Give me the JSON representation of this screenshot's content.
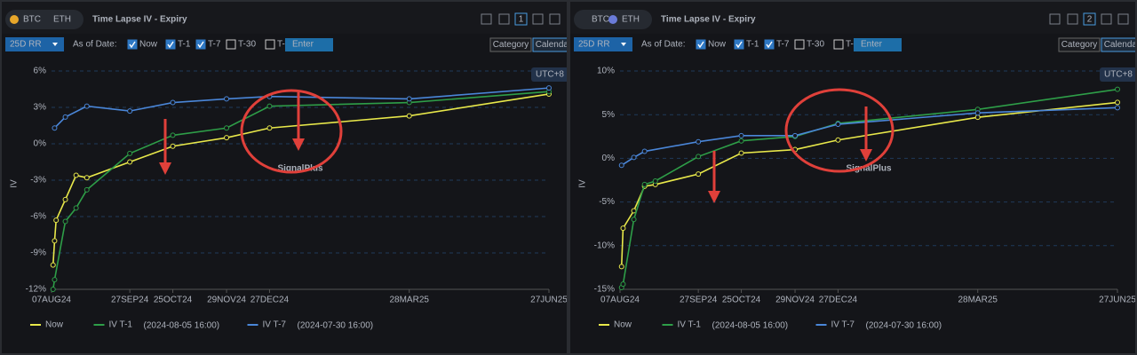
{
  "panels": [
    {
      "tabs": [
        "BTC",
        "ETH"
      ],
      "active_tab": 0,
      "title": "Time Lapse IV - Expiry",
      "window_no": "1",
      "selector": "25D RR",
      "as_of_label": "As of Date:",
      "options": [
        {
          "label": "Now",
          "checked": true
        },
        {
          "label": "T-1",
          "checked": true
        },
        {
          "label": "T-7",
          "checked": true
        },
        {
          "label": "T-30",
          "checked": false
        },
        {
          "label": "T-",
          "checked": false
        }
      ],
      "placeholder": "Enter",
      "views": [
        "Category",
        "Calendar"
      ],
      "active_view": 1,
      "timezone": "UTC+8",
      "watermark": "SignalPlus"
    },
    {
      "tabs": [
        "BTC",
        "ETH"
      ],
      "active_tab": 1,
      "title": "Time Lapse IV - Expiry",
      "window_no": "2",
      "selector": "25D RR",
      "as_of_label": "As of Date:",
      "options": [
        {
          "label": "Now",
          "checked": true
        },
        {
          "label": "T-1",
          "checked": true
        },
        {
          "label": "T-7",
          "checked": true
        },
        {
          "label": "T-30",
          "checked": false
        },
        {
          "label": "T-",
          "checked": false
        }
      ],
      "placeholder": "Enter",
      "views": [
        "Category",
        "Calendar"
      ],
      "active_view": 1,
      "timezone": "UTC+8",
      "watermark": "SignalPlus"
    }
  ],
  "chart_data": [
    {
      "type": "line",
      "y_label": "IV",
      "xlim": [
        "07AUG24",
        "27JUN25"
      ],
      "xticks": [
        "07AUG24",
        "27SEP24",
        "25OCT24",
        "29NOV24",
        "27DEC24",
        "28MAR25",
        "27JUN25"
      ],
      "ylim": [
        -12,
        6
      ],
      "yticks": [
        {
          "value": -12,
          "label": "-12%"
        },
        {
          "value": -9,
          "label": "-9%"
        },
        {
          "value": -6,
          "label": "-6%"
        },
        {
          "value": -3,
          "label": "-3%"
        },
        {
          "value": 0,
          "label": "0%"
        },
        {
          "value": 3,
          "label": "3%"
        },
        {
          "value": 6,
          "label": "6%"
        }
      ],
      "grid": true,
      "series": [
        {
          "name": "Now",
          "color": "#e8e84a",
          "x": [
            "08AUG24",
            "09AUG24",
            "10AUG24",
            "16AUG24",
            "23AUG24",
            "30AUG24",
            "27SEP24",
            "25OCT24",
            "29NOV24",
            "27DEC24",
            "28MAR25",
            "27JUN25"
          ],
          "values": [
            -10,
            -8,
            -6.3,
            -4.6,
            -2.6,
            -2.8,
            -1.5,
            -0.2,
            0.5,
            1.3,
            2.3,
            4.1
          ]
        },
        {
          "name": "IV T-1",
          "as_of": "(2024-08-05 16:00)",
          "color": "#2e9e48",
          "x": [
            "08AUG24",
            "09AUG24",
            "16AUG24",
            "23AUG24",
            "30AUG24",
            "27SEP24",
            "25OCT24",
            "29NOV24",
            "27DEC24",
            "28MAR25",
            "27JUN25"
          ],
          "values": [
            -12,
            -11.2,
            -6.4,
            -5.3,
            -3.8,
            -0.8,
            0.7,
            1.3,
            3.1,
            3.4,
            4.3
          ]
        },
        {
          "name": "IV T-7",
          "as_of": "(2024-07-30 16:00)",
          "color": "#4a86d8",
          "x": [
            "09AUG24",
            "16AUG24",
            "30AUG24",
            "27SEP24",
            "25OCT24",
            "29NOV24",
            "27DEC24",
            "28MAR25",
            "27JUN25"
          ],
          "values": [
            1.3,
            2.2,
            3.1,
            2.7,
            3.4,
            3.7,
            3.9,
            3.7,
            4.6
          ]
        }
      ]
    },
    {
      "type": "line",
      "y_label": "IV",
      "xlim": [
        "07AUG24",
        "27JUN25"
      ],
      "xticks": [
        "07AUG24",
        "27SEP24",
        "25OCT24",
        "29NOV24",
        "27DEC24",
        "28MAR25",
        "27JUN25"
      ],
      "ylim": [
        -15,
        10
      ],
      "yticks": [
        {
          "value": -15,
          "label": "-15%"
        },
        {
          "value": -10,
          "label": "-10%"
        },
        {
          "value": -5,
          "label": "-5%"
        },
        {
          "value": 0,
          "label": "0%"
        },
        {
          "value": 5,
          "label": "5%"
        },
        {
          "value": 10,
          "label": "10%"
        }
      ],
      "grid": true,
      "series": [
        {
          "name": "Now",
          "color": "#e8e84a",
          "x": [
            "08AUG24",
            "09AUG24",
            "16AUG24",
            "23AUG24",
            "30AUG24",
            "27SEP24",
            "25OCT24",
            "29NOV24",
            "27DEC24",
            "28MAR25",
            "27JUN25"
          ],
          "values": [
            -12.4,
            -8,
            -6,
            -3.2,
            -3,
            -1.8,
            0.6,
            1,
            2.1,
            4.7,
            6.4
          ]
        },
        {
          "name": "IV T-1",
          "as_of": "(2024-08-05 16:00)",
          "color": "#2e9e48",
          "x": [
            "08AUG24",
            "09AUG24",
            "16AUG24",
            "23AUG24",
            "30AUG24",
            "27SEP24",
            "25OCT24",
            "29NOV24",
            "27DEC24",
            "28MAR25",
            "27JUN25"
          ],
          "values": [
            -14.8,
            -14.4,
            -7,
            -3,
            -2.6,
            0.2,
            2,
            2.5,
            4,
            5.6,
            7.9
          ]
        },
        {
          "name": "IV T-7",
          "as_of": "(2024-07-30 16:00)",
          "color": "#4a86d8",
          "x": [
            "08AUG24",
            "16AUG24",
            "23AUG24",
            "27SEP24",
            "25OCT24",
            "29NOV24",
            "27DEC24",
            "28MAR25",
            "27JUN25"
          ],
          "values": [
            -0.8,
            0.1,
            0.8,
            1.9,
            2.6,
            2.6,
            3.9,
            5.2,
            5.8
          ]
        }
      ]
    }
  ]
}
